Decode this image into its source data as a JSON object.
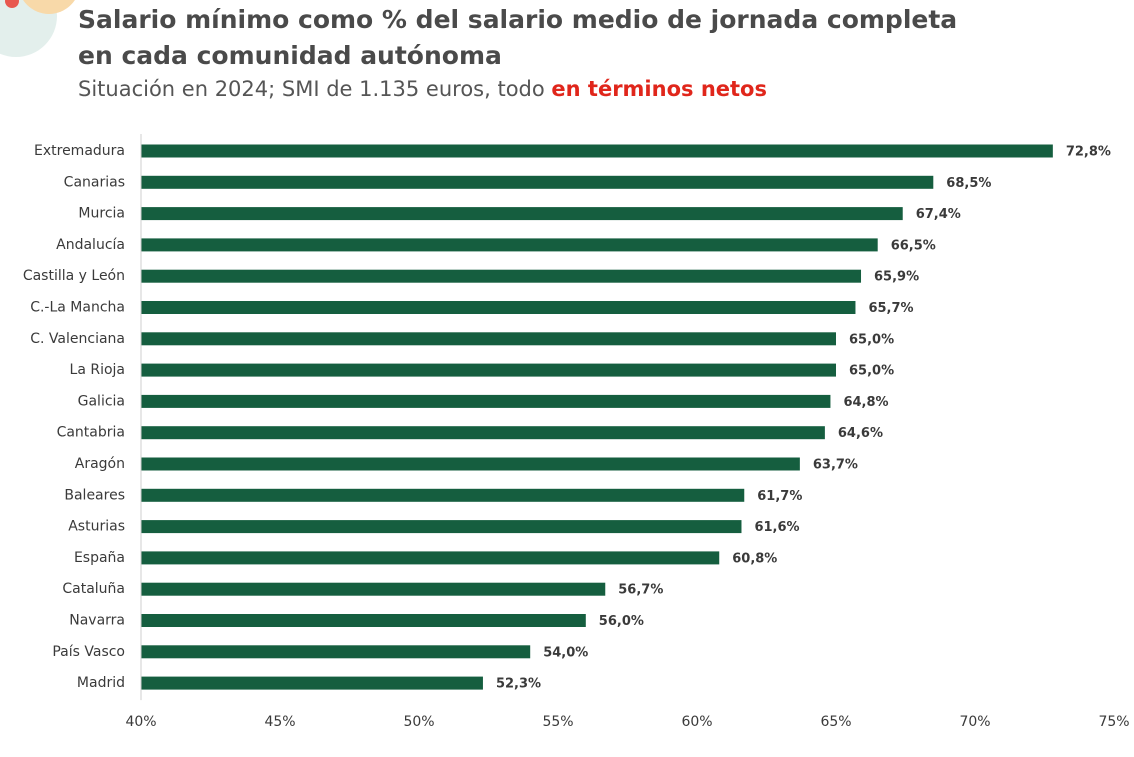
{
  "header": {
    "title_line1": "Salario mínimo como % del salario medio de jornada completa",
    "title_line2": "en cada comunidad autónoma",
    "subtitle_prefix": "Situación en 2024; SMI de 1.135 euros, todo ",
    "subtitle_highlight": "en términos netos"
  },
  "chart_data": {
    "type": "bar",
    "orientation": "horizontal",
    "title": "Salario mínimo como % del salario medio de jornada completa en cada comunidad autónoma",
    "subtitle": "Situación en 2024; SMI de 1.135 euros, todo en términos netos",
    "categories": [
      "Extremadura",
      "Canarias",
      "Murcia",
      "Andalucía",
      "Castilla y León",
      "C.-La Mancha",
      "C. Valenciana",
      "La Rioja",
      "Galicia",
      "Cantabria",
      "Aragón",
      "Baleares",
      "Asturias",
      "España",
      "Cataluña",
      "Navarra",
      "País Vasco",
      "Madrid"
    ],
    "values": [
      72.8,
      68.5,
      67.4,
      66.5,
      65.9,
      65.7,
      65.0,
      65.0,
      64.8,
      64.6,
      63.7,
      61.7,
      61.6,
      60.8,
      56.7,
      56.0,
      54.0,
      52.3
    ],
    "value_labels": [
      "72,8%",
      "68,5%",
      "67,4%",
      "66,5%",
      "65,9%",
      "65,7%",
      "65,0%",
      "65,0%",
      "64,8%",
      "64,6%",
      "63,7%",
      "61,7%",
      "61,6%",
      "60,8%",
      "56,7%",
      "56,0%",
      "54,0%",
      "52,3%"
    ],
    "xlim": [
      40,
      75
    ],
    "xticks": [
      40,
      45,
      50,
      55,
      60,
      65,
      70,
      75
    ],
    "xtick_labels": [
      "40%",
      "45%",
      "50%",
      "55%",
      "60%",
      "65%",
      "70%",
      "75%"
    ],
    "xlabel": "",
    "ylabel": "",
    "grid": false,
    "bar_color": "#155e3f"
  }
}
